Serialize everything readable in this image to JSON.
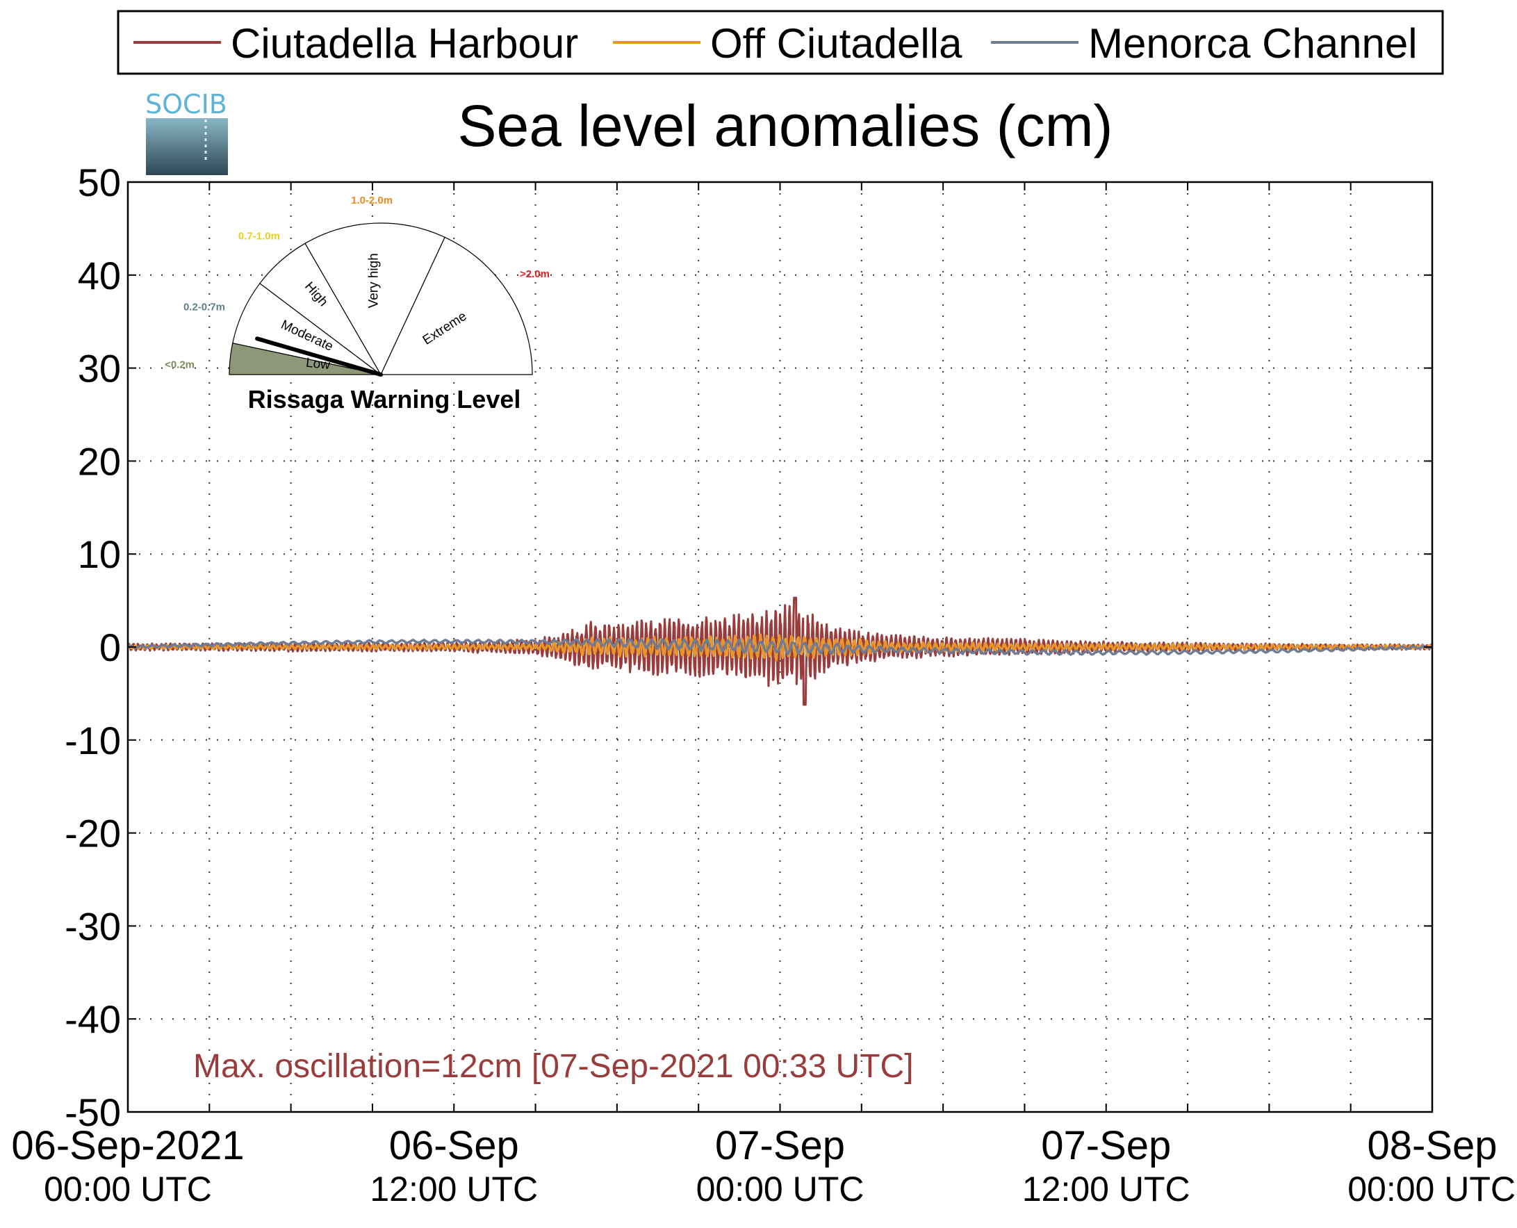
{
  "chart_data": {
    "type": "line",
    "title": "Sea level anomalies (cm)",
    "ylim": [
      -50,
      50
    ],
    "yticks": [
      50,
      40,
      30,
      20,
      10,
      0,
      -10,
      -20,
      -30,
      -40,
      -50
    ],
    "xlim_hours": [
      0,
      48
    ],
    "x_unit": "hours since 06-Sep-2021 00:00 UTC",
    "xticks": [
      {
        "hours": 0,
        "date": "06-Sep-2021",
        "time": "00:00 UTC"
      },
      {
        "hours": 12,
        "date": "06-Sep",
        "time": "12:00 UTC"
      },
      {
        "hours": 24,
        "date": "07-Sep",
        "time": "00:00 UTC"
      },
      {
        "hours": 36,
        "date": "07-Sep",
        "time": "12:00 UTC"
      },
      {
        "hours": 48,
        "date": "08-Sep",
        "time": "00:00 UTC"
      }
    ],
    "minor_gridlines_hours": [
      3,
      6,
      9,
      15,
      18,
      21,
      27,
      30,
      33,
      39,
      42,
      45
    ],
    "grid": true,
    "legend_position": "top",
    "series": [
      {
        "name": "Ciutadella Harbour",
        "color": "#9a3c3c",
        "envelope_hours": [
          0,
          3,
          6,
          9,
          12,
          14,
          15,
          16,
          17,
          18,
          19,
          20,
          21,
          22,
          23,
          24,
          24.5,
          25,
          26,
          27,
          28,
          30,
          33,
          36,
          39,
          42,
          45,
          48
        ],
        "envelope_amp_cm": [
          0.4,
          0.4,
          0.5,
          0.5,
          0.5,
          0.8,
          0.9,
          1.5,
          2.8,
          2.5,
          3.2,
          3.3,
          3.6,
          3.3,
          4.0,
          4.8,
          4.5,
          4.0,
          2.5,
          1.8,
          1.4,
          1.1,
          0.9,
          0.6,
          0.5,
          0.4,
          0.3,
          0.3
        ],
        "max_cm": 5.3,
        "min_cm": -6.2
      },
      {
        "name": "Off Ciutadella",
        "color": "#e8962a",
        "envelope_hours": [
          0,
          15,
          17,
          20,
          22,
          24,
          26,
          28,
          33,
          48
        ],
        "envelope_amp_cm": [
          0.2,
          0.3,
          1.0,
          1.2,
          1.3,
          1.5,
          1.2,
          0.6,
          0.4,
          0.2
        ]
      },
      {
        "name": "Menorca Channel",
        "color": "#6f7c93",
        "envelope_hours": [
          0,
          15,
          20,
          24,
          28,
          48
        ],
        "envelope_amp_cm": [
          0.15,
          0.2,
          0.6,
          0.8,
          0.3,
          0.15
        ]
      }
    ],
    "annotation": {
      "text": "Max. oscillation=12cm [07-Sep-2021 00:33 UTC]",
      "color": "#9a3c3c"
    }
  },
  "logo": {
    "text": "SOCIB"
  },
  "gauge": {
    "title": "Rissaga Warning Level",
    "current_level": "Low",
    "needle_fraction": 0.09,
    "sectors": [
      {
        "label": "Low",
        "range": "<0.2m",
        "range_color": "#7c8c5c",
        "fill": "#8c9878"
      },
      {
        "label": "Moderate",
        "range": "0.2-0.7m",
        "range_color": "#5f7f8c",
        "fill": "#ffffff"
      },
      {
        "label": "High",
        "range": "0.7-1.0m",
        "range_color": "#e6d01a",
        "fill": "#ffffff"
      },
      {
        "label": "Very high",
        "range": "1.0-2.0m",
        "range_color": "#e88a1c",
        "fill": "#ffffff"
      },
      {
        "label": "Extreme",
        "range": ">2.0m",
        "range_color": "#e02020",
        "fill": "#ffffff"
      }
    ]
  }
}
